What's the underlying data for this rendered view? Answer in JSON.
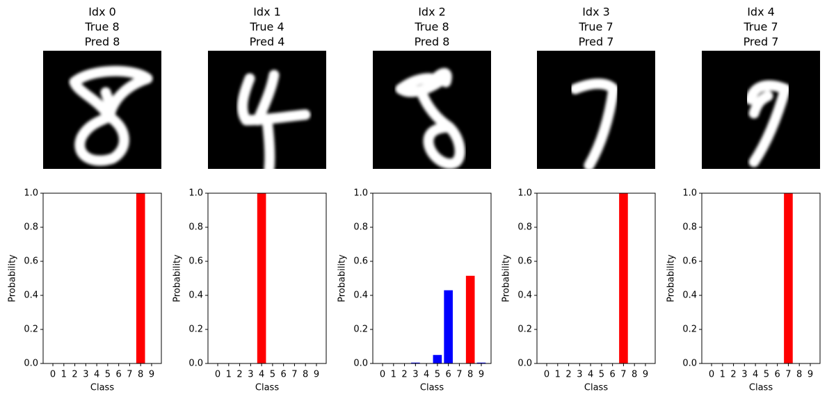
{
  "chart_data": [
    {
      "type": "bar",
      "title": [
        "Idx 0",
        "True 8",
        "Pred 8"
      ],
      "xlabel": "Class",
      "ylabel": "Probability",
      "categories": [
        "0",
        "1",
        "2",
        "3",
        "4",
        "5",
        "6",
        "7",
        "8",
        "9"
      ],
      "values": [
        0,
        0,
        0,
        0,
        0,
        0,
        0,
        0,
        1.0,
        0
      ],
      "colors": [
        "#0000ff",
        "#0000ff",
        "#0000ff",
        "#0000ff",
        "#0000ff",
        "#0000ff",
        "#0000ff",
        "#0000ff",
        "#ff0000",
        "#0000ff"
      ],
      "ylim": [
        0,
        1
      ],
      "yticks": [
        {
          "value": 0,
          "label": "0.0"
        },
        {
          "value": 0.2,
          "label": "0.2"
        },
        {
          "value": 0.4,
          "label": "0.4"
        },
        {
          "value": 0.6,
          "label": "0.6"
        },
        {
          "value": 0.8,
          "label": "0.8"
        },
        {
          "value": 1,
          "label": "1.0"
        }
      ]
    },
    {
      "type": "bar",
      "title": [
        "Idx 1",
        "True 4",
        "Pred 4"
      ],
      "xlabel": "Class",
      "ylabel": "Probability",
      "categories": [
        "0",
        "1",
        "2",
        "3",
        "4",
        "5",
        "6",
        "7",
        "8",
        "9"
      ],
      "values": [
        0,
        0,
        0,
        0,
        1.0,
        0,
        0,
        0,
        0,
        0
      ],
      "colors": [
        "#0000ff",
        "#0000ff",
        "#0000ff",
        "#0000ff",
        "#ff0000",
        "#0000ff",
        "#0000ff",
        "#0000ff",
        "#0000ff",
        "#0000ff"
      ],
      "ylim": [
        0,
        1
      ],
      "yticks": [
        {
          "value": 0,
          "label": "0.0"
        },
        {
          "value": 0.2,
          "label": "0.2"
        },
        {
          "value": 0.4,
          "label": "0.4"
        },
        {
          "value": 0.6,
          "label": "0.6"
        },
        {
          "value": 0.8,
          "label": "0.8"
        },
        {
          "value": 1,
          "label": "1.0"
        }
      ]
    },
    {
      "type": "bar",
      "title": [
        "Idx 2",
        "True 8",
        "Pred 8"
      ],
      "xlabel": "Class",
      "ylabel": "Probability",
      "categories": [
        "0",
        "1",
        "2",
        "3",
        "4",
        "5",
        "6",
        "7",
        "8",
        "9"
      ],
      "values": [
        0,
        0,
        0,
        0.005,
        0,
        0.05,
        0.43,
        0,
        0.515,
        0.005
      ],
      "colors": [
        "#0000ff",
        "#0000ff",
        "#0000ff",
        "#0000ff",
        "#0000ff",
        "#0000ff",
        "#0000ff",
        "#0000ff",
        "#ff0000",
        "#0000ff"
      ],
      "ylim": [
        0,
        1
      ],
      "yticks": [
        {
          "value": 0,
          "label": "0.0"
        },
        {
          "value": 0.2,
          "label": "0.2"
        },
        {
          "value": 0.4,
          "label": "0.4"
        },
        {
          "value": 0.6,
          "label": "0.6"
        },
        {
          "value": 0.8,
          "label": "0.8"
        },
        {
          "value": 1,
          "label": "1.0"
        }
      ]
    },
    {
      "type": "bar",
      "title": [
        "Idx 3",
        "True 7",
        "Pred 7"
      ],
      "xlabel": "Class",
      "ylabel": "Probability",
      "categories": [
        "0",
        "1",
        "2",
        "3",
        "4",
        "5",
        "6",
        "7",
        "8",
        "9"
      ],
      "values": [
        0,
        0,
        0,
        0,
        0,
        0,
        0,
        1.0,
        0,
        0
      ],
      "colors": [
        "#0000ff",
        "#0000ff",
        "#0000ff",
        "#0000ff",
        "#0000ff",
        "#0000ff",
        "#0000ff",
        "#ff0000",
        "#0000ff",
        "#0000ff"
      ],
      "ylim": [
        0,
        1
      ],
      "yticks": [
        {
          "value": 0,
          "label": "0.0"
        },
        {
          "value": 0.2,
          "label": "0.2"
        },
        {
          "value": 0.4,
          "label": "0.4"
        },
        {
          "value": 0.6,
          "label": "0.6"
        },
        {
          "value": 0.8,
          "label": "0.8"
        },
        {
          "value": 1,
          "label": "1.0"
        }
      ]
    },
    {
      "type": "bar",
      "title": [
        "Idx 4",
        "True 7",
        "Pred 7"
      ],
      "xlabel": "Class",
      "ylabel": "Probability",
      "categories": [
        "0",
        "1",
        "2",
        "3",
        "4",
        "5",
        "6",
        "7",
        "8",
        "9"
      ],
      "values": [
        0,
        0,
        0,
        0,
        0,
        0,
        0,
        1.0,
        0,
        0
      ],
      "colors": [
        "#0000ff",
        "#0000ff",
        "#0000ff",
        "#0000ff",
        "#0000ff",
        "#0000ff",
        "#0000ff",
        "#ff0000",
        "#0000ff",
        "#0000ff"
      ],
      "ylim": [
        0,
        1
      ],
      "yticks": [
        {
          "value": 0,
          "label": "0.0"
        },
        {
          "value": 0.2,
          "label": "0.2"
        },
        {
          "value": 0.4,
          "label": "0.4"
        },
        {
          "value": 0.6,
          "label": "0.6"
        },
        {
          "value": 0.8,
          "label": "0.8"
        },
        {
          "value": 1,
          "label": "1.0"
        }
      ]
    }
  ]
}
